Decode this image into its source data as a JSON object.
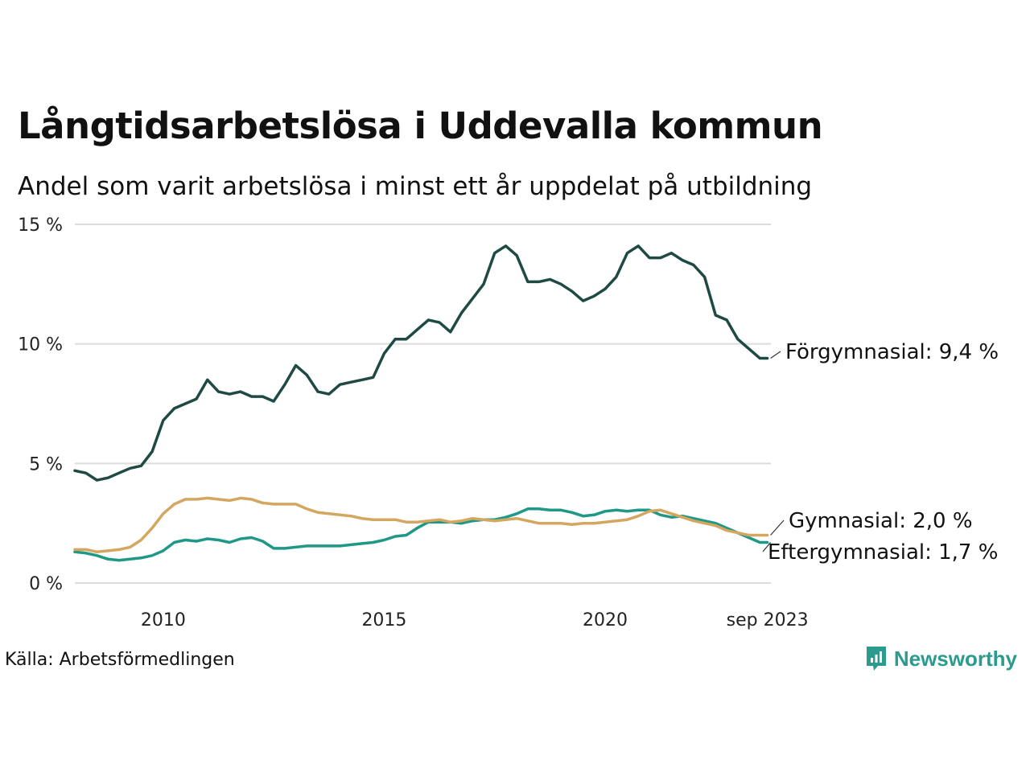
{
  "title": "Långtidsarbetslösa i Uddevalla kommun",
  "subtitle": "Andel som varit arbetslösa i minst ett år uppdelat på utbildning",
  "source": "Källa: Arbetsförmedlingen",
  "brand": {
    "name": "Newsworthy",
    "icon": "newsworthy-logo-icon",
    "color": "#2a9b8c"
  },
  "chart_data": {
    "type": "line",
    "title": "Långtidsarbetslösa i Uddevalla kommun",
    "xlabel": "",
    "ylabel": "",
    "ylim": [
      0,
      15
    ],
    "yticks": [
      {
        "value": 0,
        "label": "0 %"
      },
      {
        "value": 5,
        "label": "5 %"
      },
      {
        "value": 10,
        "label": "10 %"
      },
      {
        "value": 15,
        "label": "15 %"
      }
    ],
    "xticks": [
      {
        "value": 2010,
        "label": "2010"
      },
      {
        "value": 2015,
        "label": "2015"
      },
      {
        "value": 2020,
        "label": "2020"
      },
      {
        "value": 2023.67,
        "label": "sep 2023"
      }
    ],
    "xlim": [
      2008.0,
      2023.75
    ],
    "grid": true,
    "series": [
      {
        "name": "Förgymnasial",
        "label": "Förgymnasial: 9,4 %",
        "color": "#1f4a44",
        "x": [
          2008.0,
          2008.25,
          2008.5,
          2008.75,
          2009.0,
          2009.25,
          2009.5,
          2009.75,
          2010.0,
          2010.25,
          2010.5,
          2010.75,
          2011.0,
          2011.25,
          2011.5,
          2011.75,
          2012.0,
          2012.25,
          2012.5,
          2012.75,
          2013.0,
          2013.25,
          2013.5,
          2013.75,
          2014.0,
          2014.25,
          2014.5,
          2014.75,
          2015.0,
          2015.25,
          2015.5,
          2015.75,
          2016.0,
          2016.25,
          2016.5,
          2016.75,
          2017.0,
          2017.25,
          2017.5,
          2017.75,
          2018.0,
          2018.25,
          2018.5,
          2018.75,
          2019.0,
          2019.25,
          2019.5,
          2019.75,
          2020.0,
          2020.25,
          2020.5,
          2020.75,
          2021.0,
          2021.25,
          2021.5,
          2021.75,
          2022.0,
          2022.25,
          2022.5,
          2022.75,
          2023.0,
          2023.25,
          2023.5,
          2023.67
        ],
        "values": [
          4.7,
          4.6,
          4.3,
          4.4,
          4.6,
          4.8,
          4.9,
          5.5,
          6.8,
          7.3,
          7.5,
          7.7,
          8.5,
          8.0,
          7.9,
          8.0,
          7.8,
          7.8,
          7.6,
          8.3,
          9.1,
          8.7,
          8.0,
          7.9,
          8.3,
          8.4,
          8.5,
          8.6,
          9.6,
          10.2,
          10.2,
          10.6,
          11.0,
          10.9,
          10.5,
          11.3,
          11.9,
          12.5,
          13.8,
          14.1,
          13.7,
          12.6,
          12.6,
          12.7,
          12.5,
          12.2,
          11.8,
          12.0,
          12.3,
          12.8,
          13.8,
          14.1,
          13.6,
          13.6,
          13.8,
          13.5,
          13.3,
          12.8,
          11.2,
          11.0,
          10.2,
          9.8,
          9.4,
          9.4
        ]
      },
      {
        "name": "Gymnasial",
        "label": "Gymnasial: 2,0 %",
        "color": "#d4a760",
        "x": [
          2008.0,
          2008.25,
          2008.5,
          2008.75,
          2009.0,
          2009.25,
          2009.5,
          2009.75,
          2010.0,
          2010.25,
          2010.5,
          2010.75,
          2011.0,
          2011.25,
          2011.5,
          2011.75,
          2012.0,
          2012.25,
          2012.5,
          2012.75,
          2013.0,
          2013.25,
          2013.5,
          2013.75,
          2014.0,
          2014.25,
          2014.5,
          2014.75,
          2015.0,
          2015.25,
          2015.5,
          2015.75,
          2016.0,
          2016.25,
          2016.5,
          2016.75,
          2017.0,
          2017.25,
          2017.5,
          2017.75,
          2018.0,
          2018.25,
          2018.5,
          2018.75,
          2019.0,
          2019.25,
          2019.5,
          2019.75,
          2020.0,
          2020.25,
          2020.5,
          2020.75,
          2021.0,
          2021.25,
          2021.5,
          2021.75,
          2022.0,
          2022.25,
          2022.5,
          2022.75,
          2023.0,
          2023.25,
          2023.5,
          2023.67
        ],
        "values": [
          1.4,
          1.4,
          1.3,
          1.35,
          1.4,
          1.5,
          1.8,
          2.3,
          2.9,
          3.3,
          3.5,
          3.5,
          3.55,
          3.5,
          3.45,
          3.55,
          3.5,
          3.35,
          3.3,
          3.3,
          3.3,
          3.1,
          2.95,
          2.9,
          2.85,
          2.8,
          2.7,
          2.65,
          2.65,
          2.65,
          2.55,
          2.55,
          2.6,
          2.65,
          2.55,
          2.6,
          2.7,
          2.65,
          2.6,
          2.65,
          2.7,
          2.6,
          2.5,
          2.5,
          2.5,
          2.45,
          2.5,
          2.5,
          2.55,
          2.6,
          2.65,
          2.8,
          3.0,
          3.05,
          2.9,
          2.75,
          2.6,
          2.5,
          2.4,
          2.2,
          2.1,
          2.0,
          2.0,
          2.0
        ]
      },
      {
        "name": "Eftergymnasial",
        "label": "Eftergymnasial: 1,7 %",
        "color": "#1f9887",
        "x": [
          2008.0,
          2008.25,
          2008.5,
          2008.75,
          2009.0,
          2009.25,
          2009.5,
          2009.75,
          2010.0,
          2010.25,
          2010.5,
          2010.75,
          2011.0,
          2011.25,
          2011.5,
          2011.75,
          2012.0,
          2012.25,
          2012.5,
          2012.75,
          2013.0,
          2013.25,
          2013.5,
          2013.75,
          2014.0,
          2014.25,
          2014.5,
          2014.75,
          2015.0,
          2015.25,
          2015.5,
          2015.75,
          2016.0,
          2016.25,
          2016.5,
          2016.75,
          2017.0,
          2017.25,
          2017.5,
          2017.75,
          2018.0,
          2018.25,
          2018.5,
          2018.75,
          2019.0,
          2019.25,
          2019.5,
          2019.75,
          2020.0,
          2020.25,
          2020.5,
          2020.75,
          2021.0,
          2021.25,
          2021.5,
          2021.75,
          2022.0,
          2022.25,
          2022.5,
          2022.75,
          2023.0,
          2023.25,
          2023.5,
          2023.67
        ],
        "values": [
          1.3,
          1.25,
          1.15,
          1.0,
          0.95,
          1.0,
          1.05,
          1.15,
          1.35,
          1.7,
          1.8,
          1.75,
          1.85,
          1.8,
          1.7,
          1.85,
          1.9,
          1.75,
          1.45,
          1.45,
          1.5,
          1.55,
          1.55,
          1.55,
          1.55,
          1.6,
          1.65,
          1.7,
          1.8,
          1.95,
          2.0,
          2.3,
          2.55,
          2.55,
          2.55,
          2.5,
          2.6,
          2.65,
          2.65,
          2.75,
          2.9,
          3.1,
          3.1,
          3.05,
          3.05,
          2.95,
          2.8,
          2.85,
          3.0,
          3.05,
          3.0,
          3.05,
          3.05,
          2.85,
          2.75,
          2.8,
          2.7,
          2.6,
          2.5,
          2.3,
          2.1,
          1.9,
          1.7,
          1.7
        ]
      }
    ]
  }
}
